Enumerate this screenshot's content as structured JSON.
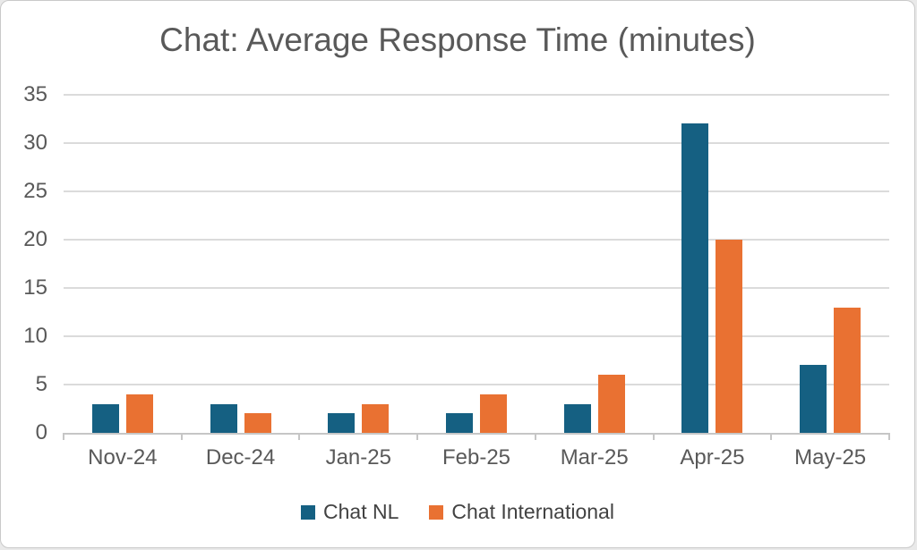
{
  "title": "Chat: Average Response Time (minutes)",
  "chart_data": {
    "type": "bar",
    "title": "Chat: Average Response Time (minutes)",
    "categories": [
      "Nov-24",
      "Dec-24",
      "Jan-25",
      "Feb-25",
      "Mar-25",
      "Apr-25",
      "May-25"
    ],
    "series": [
      {
        "name": "Chat NL",
        "color": "#156082",
        "values": [
          3,
          3,
          2,
          2,
          3,
          32,
          7
        ]
      },
      {
        "name": "Chat International",
        "color": "#E97132",
        "values": [
          4,
          2,
          3,
          4,
          6,
          20,
          13
        ]
      }
    ],
    "xlabel": "",
    "ylabel": "",
    "ylim": [
      0,
      35
    ],
    "yticks": [
      0,
      5,
      10,
      15,
      20,
      25,
      30,
      35
    ],
    "grid": true,
    "legend_position": "bottom"
  },
  "colors": {
    "series1": "#156082",
    "series2": "#E97132",
    "title_text": "#595959",
    "axis_text": "#595959",
    "legend_text": "#424242",
    "gridline": "#DBDBDB",
    "axis_line": "#C6C6C6",
    "card_border": "#C9C9C9",
    "card_background": "#FFFFFF"
  }
}
